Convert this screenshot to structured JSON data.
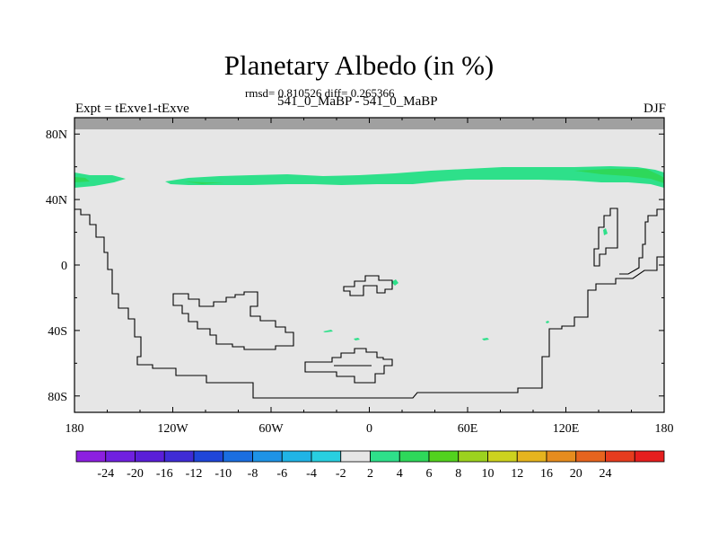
{
  "title": "Planetary Albedo (in %)",
  "stats_line": "rmsd= 0.810526 diff= 0.265366",
  "left_label": "Expt = tExve1-tExve",
  "center_label": "541_0_MaBP - 541_0_MaBP",
  "right_label": "DJF",
  "chart_data": {
    "type": "heatmap",
    "title": "Planetary Albedo (in %)",
    "xlabel": "",
    "ylabel": "",
    "xlim": [
      -180,
      180
    ],
    "ylim": [
      -90,
      90
    ],
    "x_ticks": [
      {
        "value": -180,
        "label": "180"
      },
      {
        "value": -120,
        "label": "120W"
      },
      {
        "value": -60,
        "label": "60W"
      },
      {
        "value": 0,
        "label": "0"
      },
      {
        "value": 60,
        "label": "60E"
      },
      {
        "value": 120,
        "label": "120E"
      },
      {
        "value": 180,
        "label": "180"
      }
    ],
    "y_ticks": [
      {
        "value": 80,
        "label": "80N"
      },
      {
        "value": 40,
        "label": "40N"
      },
      {
        "value": 0,
        "label": "0"
      },
      {
        "value": -40,
        "label": "40S"
      },
      {
        "value": -80,
        "label": "80S"
      }
    ],
    "colorbar": {
      "colors": [
        "#8c1fe0",
        "#7020e0",
        "#5a1ed8",
        "#3f2cd6",
        "#1f46d9",
        "#1a6ee0",
        "#1e93e6",
        "#20b4e6",
        "#28cfe0",
        "#e6e6e6",
        "#2ee08a",
        "#2ed85a",
        "#52d21e",
        "#9cd21e",
        "#cdd21e",
        "#e6b41e",
        "#e68c1e",
        "#e6641e",
        "#e63c1e",
        "#e61e1e"
      ],
      "labels": [
        "-24",
        "-20",
        "-16",
        "-12",
        "-10",
        "-8",
        "-6",
        "-4",
        "-2",
        "2",
        "4",
        "6",
        "8",
        "10",
        "12",
        "16",
        "20",
        "24"
      ]
    },
    "features": [
      {
        "name": "positive band",
        "value_range": [
          2,
          6
        ],
        "lat_range": [
          47,
          57
        ],
        "lon_range": [
          -180,
          180
        ]
      }
    ],
    "missing_band_lat": [
      84,
      90
    ],
    "background_value_range": [
      -2,
      2
    ]
  }
}
